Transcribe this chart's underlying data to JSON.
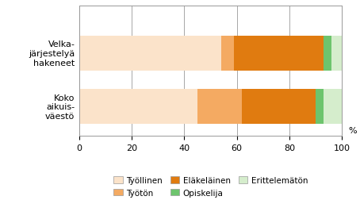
{
  "categories": [
    "Koko\naikuis-\nväestö",
    "Velka-\njärjestelyä\nhakeneet"
  ],
  "series": {
    "Työllinen": [
      54,
      45
    ],
    "Työtön": [
      5,
      17
    ],
    "Eläkeläinen": [
      34,
      28
    ],
    "Opiskelija": [
      3,
      3
    ],
    "Erittelemätön": [
      4,
      7
    ]
  },
  "colors": {
    "Työllinen": "#fbe3ca",
    "Työtön": "#f4aa62",
    "Eläkeläinen": "#e07b10",
    "Opiskelija": "#6dc46d",
    "Erittelemätön": "#d5edcc"
  },
  "xlim": [
    0,
    100
  ],
  "xticks": [
    0,
    20,
    40,
    60,
    80,
    100
  ],
  "background_color": "#ffffff",
  "bar_height": 0.65,
  "grid_color": "#999999",
  "spine_color": "#999999",
  "legend_order": [
    "Työllinen",
    "Työtön",
    "Eläkeläinen",
    "Opiskelija",
    "Erittelemätön"
  ],
  "legend_ncol": 3,
  "tick_fontsize": 8,
  "label_fontsize": 8
}
